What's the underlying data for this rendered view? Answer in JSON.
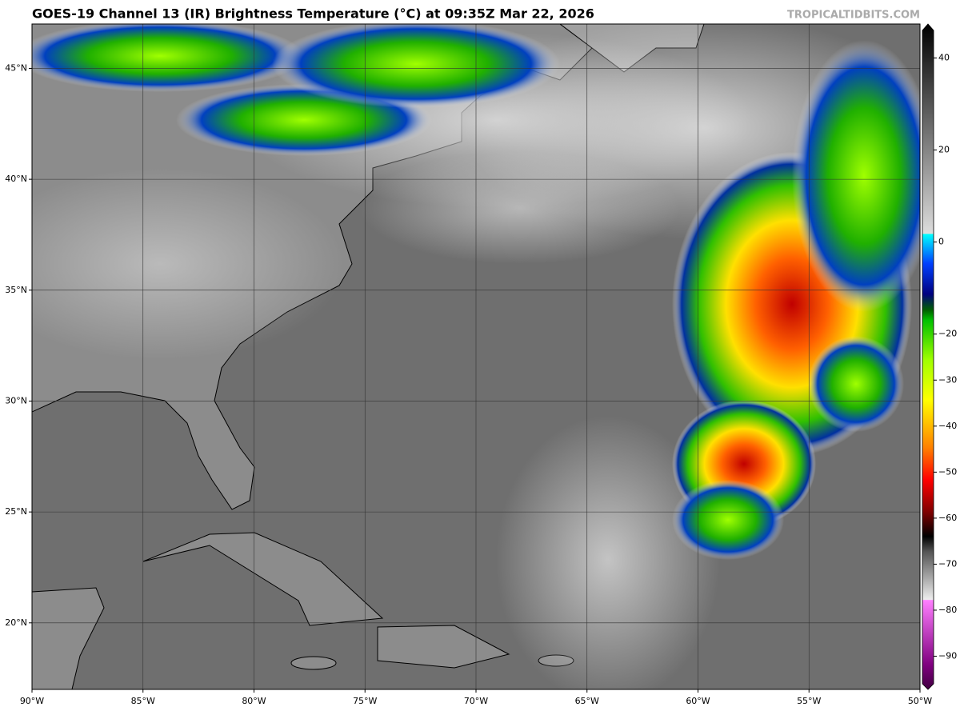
{
  "header": {
    "title": "GOES-19 Channel 13 (IR) Brightness Temperature (°C) at 09:35Z Mar 22, 2026",
    "watermark": "TROPICALTIDBITS.COM"
  },
  "map": {
    "xlim": [
      -90,
      -50
    ],
    "ylim": [
      17,
      47
    ],
    "grid": true,
    "xticks": [
      {
        "value": -90,
        "label": "90°W"
      },
      {
        "value": -85,
        "label": "85°W"
      },
      {
        "value": -80,
        "label": "80°W"
      },
      {
        "value": -75,
        "label": "75°W"
      },
      {
        "value": -70,
        "label": "70°W"
      },
      {
        "value": -65,
        "label": "65°W"
      },
      {
        "value": -60,
        "label": "60°W"
      },
      {
        "value": -55,
        "label": "55°W"
      },
      {
        "value": -50,
        "label": "50°W"
      }
    ],
    "yticks": [
      {
        "value": 20,
        "label": "20°N"
      },
      {
        "value": 25,
        "label": "25°N"
      },
      {
        "value": 30,
        "label": "30°N"
      },
      {
        "value": 35,
        "label": "35°N"
      },
      {
        "value": 40,
        "label": "40°N"
      },
      {
        "value": 45,
        "label": "45°N"
      }
    ]
  },
  "colorbar": {
    "lim": [
      -96,
      46
    ],
    "ticks": [
      40,
      20,
      0,
      {
        "value": -20,
        "label": "−20"
      },
      {
        "value": -30,
        "label": "−30"
      },
      {
        "value": -40,
        "label": "−40"
      },
      {
        "value": -50,
        "label": "−50"
      },
      {
        "value": -60,
        "label": "−60"
      },
      {
        "value": -70,
        "label": "−70"
      },
      {
        "value": -80,
        "label": "−80"
      },
      {
        "value": -90,
        "label": "−90"
      }
    ]
  }
}
